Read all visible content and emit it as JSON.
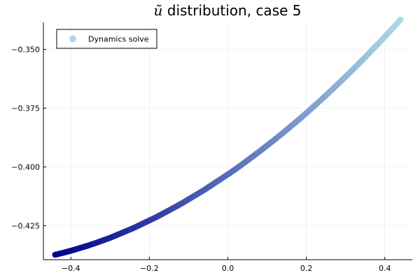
{
  "chart_data": {
    "type": "scatter",
    "title": {
      "symbol": "ũ",
      "text": " distribution, case 5"
    },
    "xlabel": "",
    "ylabel": "",
    "xlim": [
      -0.47,
      0.47
    ],
    "ylim": [
      -0.4395,
      -0.3385
    ],
    "x_ticks": [
      -0.4,
      -0.2,
      0.0,
      0.2,
      0.4
    ],
    "x_tick_labels": [
      "−0.4",
      "−0.2",
      "0.0",
      "0.2",
      "0.4"
    ],
    "y_ticks": [
      -0.35,
      -0.375,
      -0.4,
      -0.425
    ],
    "y_tick_labels": [
      "−0.350",
      "−0.375",
      "−0.400",
      "−0.425"
    ],
    "grid": true,
    "legend": {
      "placement": "top-left",
      "entries": [
        "Dynamics solve"
      ]
    },
    "colormap": {
      "low": "#00008b",
      "high": "#add8e6"
    },
    "series": [
      {
        "name": "Dynamics solve",
        "marker": "circle",
        "x": [
          -0.44,
          -0.42,
          -0.4,
          -0.38,
          -0.36,
          -0.34,
          -0.32,
          -0.3,
          -0.28,
          -0.26,
          -0.24,
          -0.22,
          -0.2,
          -0.18,
          -0.16,
          -0.14,
          -0.12,
          -0.1,
          -0.08,
          -0.06,
          -0.04,
          -0.02,
          0.0,
          0.02,
          0.04,
          0.06,
          0.08,
          0.1,
          0.12,
          0.14,
          0.16,
          0.18,
          0.2,
          0.22,
          0.24,
          0.26,
          0.28,
          0.3,
          0.32,
          0.34,
          0.36,
          0.38,
          0.4,
          0.42,
          0.44
        ],
        "y": [
          -0.4374,
          -0.4366,
          -0.4357,
          -0.4347,
          -0.4337,
          -0.4326,
          -0.4314,
          -0.4302,
          -0.4288,
          -0.4274,
          -0.426,
          -0.4244,
          -0.4228,
          -0.4212,
          -0.4194,
          -0.4176,
          -0.4158,
          -0.4138,
          -0.4118,
          -0.4098,
          -0.4076,
          -0.4054,
          -0.4032,
          -0.4009,
          -0.3985,
          -0.396,
          -0.3935,
          -0.3909,
          -0.3883,
          -0.3856,
          -0.3828,
          -0.38,
          -0.3771,
          -0.3741,
          -0.3711,
          -0.368,
          -0.3648,
          -0.3616,
          -0.3583,
          -0.355,
          -0.3516,
          -0.3481,
          -0.3446,
          -0.341,
          -0.3373
        ]
      }
    ]
  }
}
